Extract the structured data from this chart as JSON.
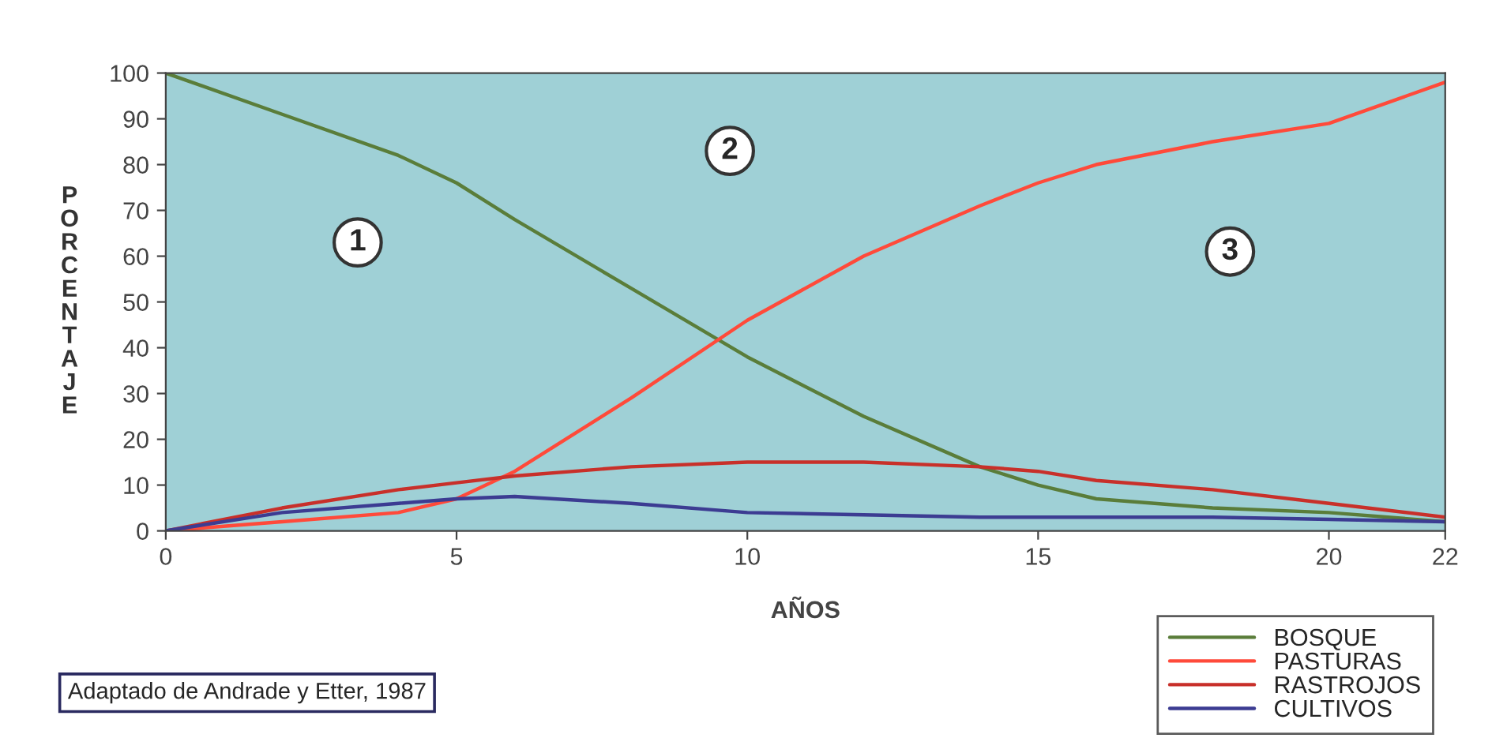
{
  "chart_data": {
    "type": "line",
    "xlabel": "AÑOS",
    "ylabel": "PORCENTAJE",
    "x": [
      0,
      2,
      4,
      5,
      6,
      8,
      10,
      12,
      14,
      15,
      16,
      18,
      20,
      22
    ],
    "series": [
      {
        "name": "BOSQUE",
        "color": "#5a7d3a",
        "values": [
          100,
          91,
          82,
          76,
          68,
          53,
          38,
          25,
          14,
          10,
          7,
          5,
          4,
          2
        ]
      },
      {
        "name": "PASTURAS",
        "color": "#ff4a3a",
        "values": [
          0,
          2,
          4,
          7,
          13,
          29,
          46,
          60,
          71,
          76,
          80,
          85,
          89,
          98
        ]
      },
      {
        "name": "RASTROJOS",
        "color": "#c8302a",
        "values": [
          0,
          5,
          9,
          10.5,
          12,
          14,
          15,
          15,
          14,
          13,
          11,
          9,
          6,
          3
        ]
      },
      {
        "name": "CULTIVOS",
        "color": "#3c3c92",
        "values": [
          0,
          4,
          6,
          7,
          7.5,
          6,
          4,
          3.5,
          3,
          3,
          3,
          3,
          2.5,
          2
        ]
      }
    ],
    "xlim": [
      0,
      22
    ],
    "xticks": [
      0,
      5,
      10,
      15,
      20,
      22
    ],
    "ylim": [
      0,
      100
    ],
    "yticks": [
      0,
      10,
      20,
      30,
      40,
      50,
      60,
      70,
      80,
      90,
      100
    ],
    "grid": false,
    "legend": "bottom right",
    "line_style": "solid",
    "marker": "none",
    "annotations": [
      {
        "text": "1",
        "x": 3.3,
        "y": 63
      },
      {
        "text": "2",
        "x": 9.7,
        "y": 83
      },
      {
        "text": "3",
        "x": 18.3,
        "y": 61
      },
      "Adaptado de Andrade y Etter, 1987"
    ]
  }
}
